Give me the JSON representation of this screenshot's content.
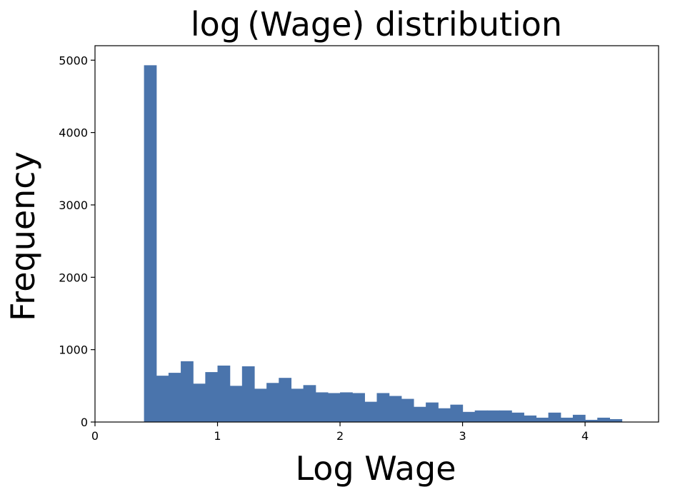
{
  "chart_data": {
    "type": "bar",
    "title": "log (Wage) distribution",
    "xlabel": "Log Wage",
    "ylabel": "Frequency",
    "xlim": [
      0,
      4.6
    ],
    "ylim": [
      0,
      5200
    ],
    "xticks": [
      "0",
      "1",
      "2",
      "3",
      "4"
    ],
    "yticks": [
      "0",
      "1000",
      "2000",
      "3000",
      "4000",
      "5000"
    ],
    "grid": false,
    "bar_color": "#4a74ac",
    "bin_start": 0.4,
    "bin_width": 0.1,
    "values": [
      4930,
      640,
      680,
      840,
      530,
      690,
      780,
      500,
      770,
      460,
      540,
      610,
      460,
      510,
      410,
      400,
      410,
      400,
      280,
      400,
      360,
      320,
      210,
      270,
      190,
      240,
      140,
      160,
      160,
      160,
      130,
      90,
      60,
      130,
      60,
      100,
      30,
      60,
      40
    ]
  }
}
